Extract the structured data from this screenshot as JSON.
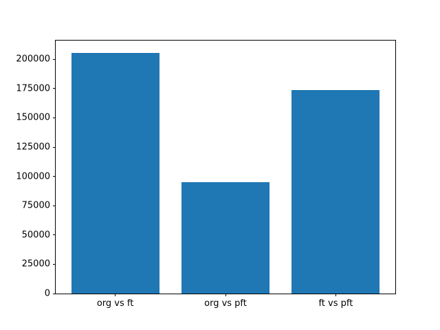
{
  "chart_data": {
    "type": "bar",
    "categories": [
      "org vs ft",
      "org vs pft",
      "ft vs pft"
    ],
    "values": [
      205600,
      95400,
      173800
    ],
    "title": "",
    "xlabel": "",
    "ylabel": "",
    "ylim": [
      0,
      216000
    ],
    "xlim": [
      -0.54,
      2.54
    ],
    "bar_width": 0.8,
    "yticks": [
      0,
      25000,
      50000,
      75000,
      100000,
      125000,
      150000,
      175000,
      200000
    ],
    "ytick_labels": [
      "0",
      "25000",
      "50000",
      "75000",
      "100000",
      "125000",
      "150000",
      "175000",
      "200000"
    ],
    "grid": false,
    "legend": "none",
    "bar_color": "#1f77b4",
    "background_color": "#ffffff",
    "spine_color": "#000000",
    "text_color": "#000000"
  }
}
